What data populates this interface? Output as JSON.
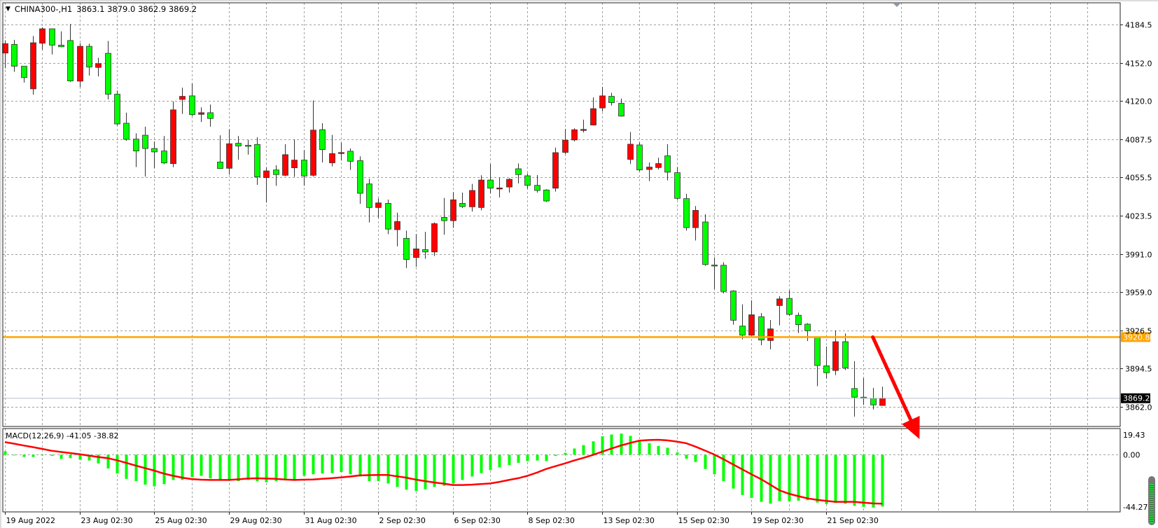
{
  "header": {
    "menu_icon": "triangle-down-icon",
    "symbol_timeframe": "CHINA300-,H1",
    "ohlc": "3863.1 3879.0 3862.9 3869.2"
  },
  "colors": {
    "bullish_candle": "#ff0000",
    "bearish_candle": "#00ff00",
    "horizontal_line": "#ffa500",
    "macd_histogram": "#00ff00",
    "macd_signal": "#ff0000",
    "arrow": "#ff0000",
    "grid": "#a0a0a0"
  },
  "chart_data": [
    {
      "type": "candlestick",
      "ylim": [
        3845.4,
        4202.8
      ],
      "grid": true,
      "y_ticks": [
        "4184.5",
        "4152.0",
        "4120.0",
        "4087.5",
        "4055.5",
        "4023.5",
        "3991.0",
        "3959.0",
        "3926.5",
        "3894.5",
        "3862.0"
      ],
      "x_labels": [
        "19 Aug 2022",
        "23 Aug 02:30",
        "25 Aug 02:30",
        "29 Aug 02:30",
        "31 Aug 02:30",
        "2 Sep 02:30",
        "6 Sep 02:30",
        "8 Sep 02:30",
        "13 Sep 02:30",
        "15 Sep 02:30",
        "19 Sep 02:30",
        "21 Sep 02:30"
      ],
      "candles_ohlc": [
        [
          4160.4,
          4171.2,
          4147.6,
          4168.3
        ],
        [
          4167.7,
          4171.6,
          4144.6,
          4149.3
        ],
        [
          4149.3,
          4149.3,
          4135.5,
          4139.7
        ],
        [
          4130.2,
          4174.8,
          4125.3,
          4169.1
        ],
        [
          4168.7,
          4182.1,
          4163.3,
          4180.9
        ],
        [
          4180.9,
          4180.9,
          4159.2,
          4167.1
        ],
        [
          4167.1,
          4178.7,
          4165.3,
          4165.7
        ],
        [
          4171.0,
          4185.0,
          4136.1,
          4136.9
        ],
        [
          4136.7,
          4168.7,
          4131.6,
          4166.1
        ],
        [
          4166.1,
          4168.3,
          4141.4,
          4148.6
        ],
        [
          4148.3,
          4156.4,
          4140.7,
          4151.5
        ],
        [
          4160.2,
          4170.6,
          4121.3,
          4125.7
        ],
        [
          4125.7,
          4128.8,
          4099.2,
          4100.6
        ],
        [
          4101.2,
          4110.1,
          4086.4,
          4087.6
        ],
        [
          4087.8,
          4092.7,
          4064.3,
          4077.8
        ],
        [
          4091.1,
          4098.3,
          4056.2,
          4079.9
        ],
        [
          4079.9,
          4085.8,
          4063.3,
          4077.0
        ],
        [
          4077.8,
          4090.4,
          4066.7,
          4067.7
        ],
        [
          4067.1,
          4119.6,
          4064.1,
          4112.5
        ],
        [
          4121.3,
          4131.2,
          4109.1,
          4123.9
        ],
        [
          4124.3,
          4134.7,
          4107.1,
          4108.5
        ],
        [
          4108.7,
          4114.6,
          4102.2,
          4110.1
        ],
        [
          4110.1,
          4117.0,
          4098.3,
          4105.2
        ],
        [
          4068.5,
          4091.0,
          4063.0,
          4063.0
        ],
        [
          4063.2,
          4096.0,
          4057.9,
          4083.9
        ],
        [
          4084.3,
          4090.4,
          4070.5,
          4082.0
        ],
        [
          4082.6,
          4087.1,
          4074.7,
          4082.4
        ],
        [
          4083.3,
          4089.4,
          4049.2,
          4055.9
        ],
        [
          4055.3,
          4063.8,
          4034.2,
          4061.0
        ],
        [
          4061.8,
          4065.8,
          4048.4,
          4057.9
        ],
        [
          4057.3,
          4083.5,
          4056.5,
          4074.7
        ],
        [
          4063.6,
          4087.5,
          4055.9,
          4070.1
        ],
        [
          4070.1,
          4078.6,
          4048.4,
          4056.7
        ],
        [
          4057.3,
          4120.4,
          4056.3,
          4095.4
        ],
        [
          4095.8,
          4101.3,
          4068.1,
          4079.0
        ],
        [
          4067.8,
          4091.4,
          4064.8,
          4075.6
        ],
        [
          4076.2,
          4084.9,
          4069.7,
          4076.5
        ],
        [
          4077.6,
          4080.0,
          4061.8,
          4069.1
        ],
        [
          4069.7,
          4073.3,
          4033.2,
          4042.1
        ],
        [
          4050.0,
          4054.3,
          4017.5,
          4030.1
        ],
        [
          4030.1,
          4037.8,
          4021.4,
          4034.0
        ],
        [
          4033.6,
          4036.8,
          4007.6,
          4011.9
        ],
        [
          4011.4,
          4025.7,
          3997.4,
          4018.3
        ],
        [
          4004.1,
          4010.6,
          3979.0,
          3986.3
        ],
        [
          3987.9,
          4007.6,
          3980.0,
          3995.2
        ],
        [
          3994.6,
          4009.6,
          3986.9,
          3992.6
        ],
        [
          3992.6,
          4017.5,
          3989.2,
          4016.5
        ],
        [
          4021.8,
          4038.2,
          4007.2,
          4019.0
        ],
        [
          4019.0,
          4043.1,
          4012.9,
          4036.6
        ],
        [
          4033.6,
          4042.7,
          4029.7,
          4030.9
        ],
        [
          4030.7,
          4050.0,
          4026.7,
          4044.5
        ],
        [
          4030.1,
          4057.3,
          4027.7,
          4053.3
        ],
        [
          4053.3,
          4066.7,
          4042.1,
          4046.4
        ],
        [
          4046.4,
          4055.3,
          4038.6,
          4046.6
        ],
        [
          4047.4,
          4054.9,
          4042.7,
          4053.9
        ],
        [
          4062.8,
          4067.3,
          4050.4,
          4057.9
        ],
        [
          4056.9,
          4058.9,
          4045.7,
          4048.8
        ],
        [
          4048.8,
          4057.5,
          4042.7,
          4044.5
        ],
        [
          4044.9,
          4045.5,
          4034.8,
          4035.6
        ],
        [
          4046.4,
          4080.6,
          4043.5,
          4076.4
        ],
        [
          4076.6,
          4096.3,
          4075.2,
          4086.9
        ],
        [
          4087.1,
          4096.9,
          4085.9,
          4095.7
        ],
        [
          4095.7,
          4104.2,
          4093.4,
          4096.0
        ],
        [
          4099.7,
          4123.0,
          4099.3,
          4113.5
        ],
        [
          4114.1,
          4131.8,
          4111.1,
          4124.3
        ],
        [
          4123.9,
          4126.9,
          4116.1,
          4118.6
        ],
        [
          4118.0,
          4122.0,
          4106.8,
          4107.2
        ],
        [
          4070.7,
          4093.8,
          4066.8,
          4083.5
        ],
        [
          4082.9,
          4085.1,
          4060.5,
          4061.8
        ],
        [
          4062.2,
          4068.1,
          4052.4,
          4064.2
        ],
        [
          4063.8,
          4072.1,
          4062.2,
          4067.2
        ],
        [
          4073.7,
          4083.5,
          4053.0,
          4059.9
        ],
        [
          4059.5,
          4064.2,
          4036.6,
          4037.8
        ],
        [
          4037.6,
          4041.7,
          4010.6,
          4013.1
        ],
        [
          4013.1,
          4031.3,
          4002.3,
          4027.7
        ],
        [
          4017.9,
          4024.4,
          3981.0,
          3982.0
        ],
        [
          3981.6,
          3987.9,
          3961.3,
          3981.2
        ],
        [
          3981.4,
          3983.9,
          3957.7,
          3959.3
        ],
        [
          3959.7,
          3960.3,
          3931.3,
          3935.0
        ],
        [
          3930.1,
          3948.4,
          3918.9,
          3922.4
        ],
        [
          3922.4,
          3951.8,
          3921.8,
          3939.6
        ],
        [
          3938.0,
          3941.0,
          3913.9,
          3918.3
        ],
        [
          3917.9,
          3935.2,
          3910.4,
          3927.7
        ],
        [
          3947.4,
          3955.3,
          3930.7,
          3953.0
        ],
        [
          3953.4,
          3960.3,
          3938.6,
          3939.9
        ],
        [
          3939.2,
          3941.5,
          3924.2,
          3931.3
        ],
        [
          3931.7,
          3932.5,
          3917.5,
          3926.2
        ],
        [
          3920.8,
          3920.8,
          3879.4,
          3896.8
        ],
        [
          3896.6,
          3912.9,
          3885.7,
          3890.7
        ],
        [
          3892.6,
          3926.4,
          3888.7,
          3916.9
        ],
        [
          3916.9,
          3923.8,
          3893.0,
          3894.8
        ],
        [
          3877.4,
          3900.5,
          3853.7,
          3870.1
        ],
        [
          3870.1,
          3886.3,
          3863.6,
          3869.9
        ],
        [
          3869.1,
          3878.0,
          3859.7,
          3863.6
        ],
        [
          3863.1,
          3879.0,
          3862.9,
          3869.2
        ]
      ],
      "horizontal_line": {
        "value": 3920.8,
        "label": "3920.8"
      },
      "current_price": {
        "value": 3869.2,
        "label": "3869.2"
      },
      "annotation_arrow": {
        "from_bar": 93,
        "from_price": 3920.8,
        "to_bar": 98,
        "to_price": 3834.8
      }
    },
    {
      "type": "bar+line",
      "title": "MACD(12,26,9) -41.05 -38.82",
      "ylim": [
        -45.3,
        20.7
      ],
      "y_ticks": [
        "19.43",
        "0.00",
        "-44.27"
      ],
      "main_histogram": [
        2.7,
        0,
        -1.8,
        -1.8,
        -0.5,
        -0.9,
        -3.3,
        -2.7,
        -4.0,
        -4.6,
        -6.9,
        -10.9,
        -14.9,
        -19.1,
        -20.9,
        -23.7,
        -25.1,
        -23.3,
        -20.0,
        -20.0,
        -17.8,
        -16.7,
        -18.7,
        -20.0,
        -20.0,
        -20.9,
        -20.0,
        -20.9,
        -21.8,
        -20.9,
        -20.0,
        -20.0,
        -16.7,
        -15.5,
        -14.9,
        -14.6,
        -13.7,
        -15.5,
        -17.3,
        -20.9,
        -20.9,
        -22.8,
        -25.5,
        -27.7,
        -28.8,
        -27.3,
        -25.5,
        -24.6,
        -22.8,
        -20.0,
        -17.3,
        -14.6,
        -12.2,
        -10.0,
        -8.2,
        -6.4,
        -5.1,
        -4.6,
        -5.1,
        -0.9,
        1.5,
        4.9,
        7.6,
        10.6,
        14.6,
        16.0,
        16.7,
        14.9,
        10.9,
        9.1,
        6.9,
        5.5,
        1.8,
        -3.1,
        -5.8,
        -11.3,
        -15.5,
        -20.9,
        -26.8,
        -31.9,
        -34.2,
        -37.3,
        -38.8,
        -36.8,
        -36.8,
        -36.4,
        -36.0,
        -37.9,
        -39.1,
        -38.2,
        -38.8,
        -40.4,
        -41.3,
        -41.9,
        -41.05
      ],
      "signal_line": [
        10.0,
        8.7,
        7.3,
        6.0,
        4.6,
        3.1,
        2.2,
        1.3,
        0.4,
        -0.7,
        -1.8,
        -2.7,
        -4.4,
        -6.4,
        -8.6,
        -10.6,
        -12.6,
        -14.9,
        -16.7,
        -18.2,
        -19.3,
        -19.8,
        -20.0,
        -20.0,
        -20.0,
        -19.5,
        -18.9,
        -18.7,
        -18.9,
        -19.1,
        -19.7,
        -20.0,
        -19.8,
        -19.7,
        -19.1,
        -18.6,
        -18.0,
        -17.3,
        -16.4,
        -16.2,
        -16.0,
        -16.0,
        -17.1,
        -18.2,
        -19.7,
        -20.9,
        -22.0,
        -22.9,
        -24.0,
        -24.0,
        -23.7,
        -23.3,
        -22.8,
        -21.5,
        -20.0,
        -18.6,
        -16.7,
        -14.2,
        -11.3,
        -9.1,
        -6.9,
        -4.6,
        -2.5,
        -0.2,
        2.4,
        4.9,
        7.3,
        9.3,
        11.1,
        11.6,
        11.8,
        11.3,
        10.4,
        9.1,
        6.4,
        3.3,
        0.2,
        -3.6,
        -7.6,
        -11.6,
        -15.5,
        -19.3,
        -23.7,
        -28.2,
        -30.9,
        -32.8,
        -34.6,
        -35.7,
        -36.6,
        -37.3,
        -37.3,
        -37.3,
        -37.9,
        -38.6,
        -38.82
      ]
    }
  ]
}
